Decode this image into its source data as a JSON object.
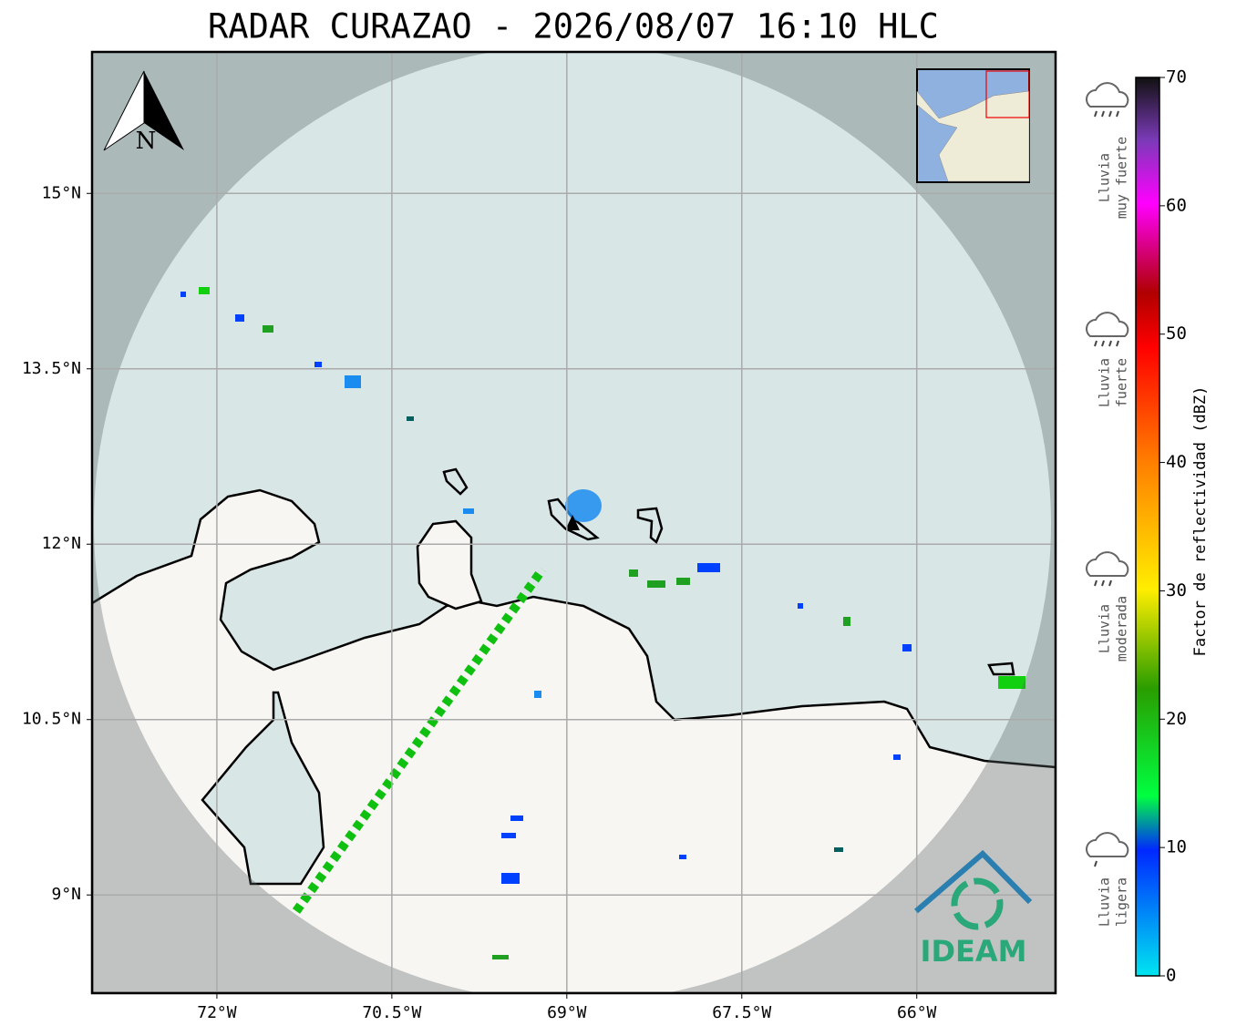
{
  "chart_data": {
    "type": "map",
    "title": "RADAR CURAZAO - 2026/08/07 16:10 HLC",
    "xlim": [
      -73.07,
      -64.81
    ],
    "ylim": [
      8.16,
      16.21
    ],
    "xticks": [
      {
        "value": -72,
        "label": "72°W"
      },
      {
        "value": -70.5,
        "label": "70.5°W"
      },
      {
        "value": -69,
        "label": "69°W"
      },
      {
        "value": -67.5,
        "label": "67.5°W"
      },
      {
        "value": -66,
        "label": "66°W"
      }
    ],
    "yticks": [
      {
        "value": 9,
        "label": "9°N"
      },
      {
        "value": 10.5,
        "label": "10.5°N"
      },
      {
        "value": 12,
        "label": "12°N"
      },
      {
        "value": 13.5,
        "label": "13.5°N"
      },
      {
        "value": 15,
        "label": "15°N"
      }
    ],
    "grid": true,
    "north": "N",
    "logo": "IDEAM",
    "colorbar": {
      "label": "Factor de reflectividad (dBZ)",
      "lim": [
        0,
        70
      ],
      "ticks": [
        0,
        10,
        20,
        30,
        40,
        50,
        60,
        70
      ]
    },
    "rain_classes": [
      {
        "lines": [
          "Lluvia",
          "muy fuerte"
        ]
      },
      {
        "lines": [
          "Lluvia",
          "fuerte"
        ]
      },
      {
        "lines": [
          "Lluvia",
          "moderada"
        ]
      },
      {
        "lines": [
          "Lluvia",
          "ligera"
        ]
      }
    ]
  }
}
